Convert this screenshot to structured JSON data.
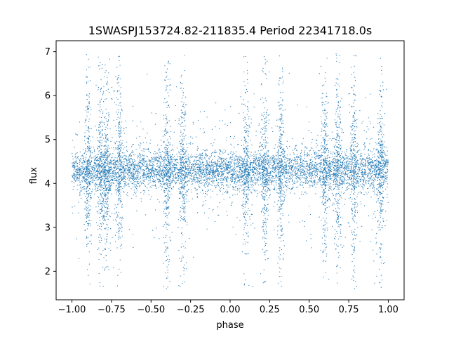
{
  "chart_data": {
    "type": "scatter",
    "title": "1SWASPJ153724.82-211835.4 Period 22341718.0s",
    "xlabel": "phase",
    "ylabel": "flux",
    "xlim": [
      -1.1,
      1.1
    ],
    "ylim": [
      1.35,
      7.25
    ],
    "x_ticks": [
      -1.0,
      -0.75,
      -0.5,
      -0.25,
      0.0,
      0.25,
      0.5,
      0.75,
      1.0
    ],
    "x_tick_labels": [
      "−1.00",
      "−0.75",
      "−0.50",
      "−0.25",
      "0.00",
      "0.25",
      "0.50",
      "0.75",
      "1.00"
    ],
    "y_ticks": [
      2,
      3,
      4,
      5,
      6,
      7
    ],
    "y_tick_labels": [
      "2",
      "3",
      "4",
      "5",
      "6",
      "7"
    ],
    "grid": false,
    "legend": "none",
    "marker_color": "#1f77b4",
    "series": [
      {
        "phase_range": [
          -1.0,
          1.0
        ],
        "median_flux": 4.3,
        "core_flux_range": [
          3.6,
          4.9
        ],
        "flux_extent": [
          1.6,
          6.95
        ],
        "scatter_bursts_at_phase": [
          -0.9,
          -0.82,
          -0.78,
          -0.7,
          -0.4,
          -0.3,
          0.1,
          0.22,
          0.32,
          0.6,
          0.68,
          0.78,
          0.95
        ]
      }
    ]
  }
}
